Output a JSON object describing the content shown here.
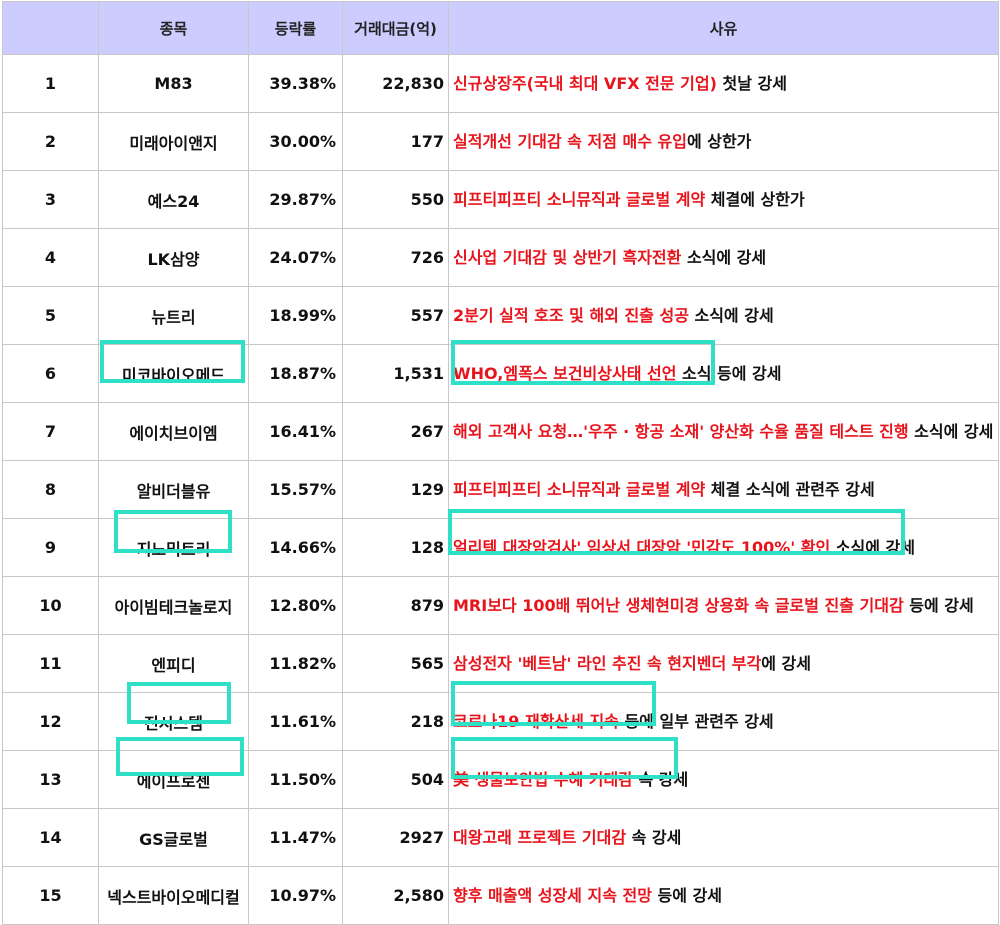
{
  "header": {
    "name": "종목",
    "rate": "등락률",
    "amount": "거래대금(억)",
    "reason": "사유"
  },
  "rows": [
    {
      "rank": "1",
      "name": "M83",
      "rate": "39.38%",
      "amount": "22,830",
      "red": "신규상장주(국내 최대 VFX 전문 기업)",
      "tail": " 첫날 강세"
    },
    {
      "rank": "2",
      "name": "미래아이앤지",
      "rate": "30.00%",
      "amount": "177",
      "red": "실적개선 기대감 속 저점 매수 유입",
      "tail": "에 상한가"
    },
    {
      "rank": "3",
      "name": "예스24",
      "rate": "29.87%",
      "amount": "550",
      "red": "피프티피프티 소니뮤직과 글로벌 계약",
      "tail": " 체결에 상한가"
    },
    {
      "rank": "4",
      "name": "LK삼양",
      "rate": "24.07%",
      "amount": "726",
      "red": "신사업 기대감 및 상반기 흑자전환",
      "tail": " 소식에 강세"
    },
    {
      "rank": "5",
      "name": "뉴트리",
      "rate": "18.99%",
      "amount": "557",
      "red": "2분기 실적 호조 및 해외 진출 성공",
      "tail": " 소식에 강세"
    },
    {
      "rank": "6",
      "name": "미코바이오메드",
      "rate": "18.87%",
      "amount": "1,531",
      "red": "WHO,엠폭스 보건비상사태 선언",
      "tail": " 소식 등에 강세"
    },
    {
      "rank": "7",
      "name": "에이치브이엠",
      "rate": "16.41%",
      "amount": "267",
      "red": "해외 고객사 요청…'우주 · 항공 소재' 양산화 수율 품질 테스트 진행",
      "tail": " 소식에 강세"
    },
    {
      "rank": "8",
      "name": "알비더블유",
      "rate": "15.57%",
      "amount": "129",
      "red": "피프티피프티 소니뮤직과 글로벌 계약",
      "tail": " 체결 소식에 관련주 강세"
    },
    {
      "rank": "9",
      "name": "지노믹트리",
      "rate": "14.66%",
      "amount": "128",
      "red": "얼리텍 대장암검사' 임상서 대장암 '민감도 100%' 확인",
      "tail": " 소식에 강세"
    },
    {
      "rank": "10",
      "name": "아이빔테크놀로지",
      "rate": "12.80%",
      "amount": "879",
      "red": "MRI보다 100배 뛰어난 생체현미경 상용화 속 글로벌 진출 기대감",
      "tail": " 등에 강세"
    },
    {
      "rank": "11",
      "name": "엔피디",
      "rate": "11.82%",
      "amount": "565",
      "red": "삼성전자 '베트남' 라인 추진 속 현지벤더 부각",
      "tail": "에 강세"
    },
    {
      "rank": "12",
      "name": "진시스템",
      "rate": "11.61%",
      "amount": "218",
      "red": "코로나19 재확산세 지속",
      "tail": " 등에 일부 관련주 강세"
    },
    {
      "rank": "13",
      "name": "에이프로젠",
      "rate": "11.50%",
      "amount": "504",
      "red": "美 생물보안법 수혜 기대감",
      "tail": " 속 강세"
    },
    {
      "rank": "14",
      "name": "GS글로벌",
      "rate": "11.47%",
      "amount": "2927",
      "red": "대왕고래 프로젝트 기대감",
      "tail": " 속 강세"
    },
    {
      "rank": "15",
      "name": "넥스트바이오메디컬",
      "rate": "10.97%",
      "amount": "2,580",
      "red": "향후 매출액 성장세 지속 전망",
      "tail": " 등에 강세"
    }
  ],
  "colors": {
    "header_bg": "#ccccff",
    "highlight_text": "#e8141c",
    "box_outline": "#2ee0c6"
  }
}
